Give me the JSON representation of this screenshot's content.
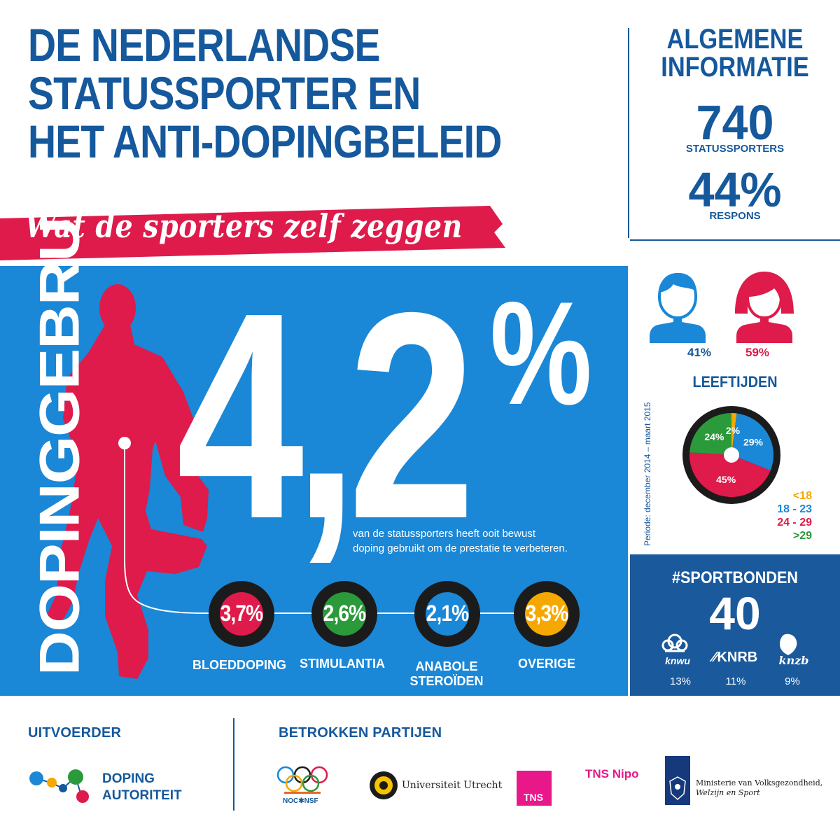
{
  "title": {
    "line1": "DE NEDERLANDSE",
    "line2": "STATUSSPORTER EN",
    "line3": "HET ANTI-DOPINGBELEID",
    "subtitle": "Wat de sporters zelf zeggen"
  },
  "info": {
    "heading_line1": "ALGEMENE",
    "heading_line2": "INFORMATIE",
    "sporters_count": "740",
    "sporters_label": "STATUSSPORTERS",
    "respons_value": "44%",
    "respons_label": "RESPONS"
  },
  "gender": {
    "male_pct": "41%",
    "female_pct": "59%"
  },
  "ages": {
    "heading": "LEEFTIJDEN",
    "period": "Periode: december 2014 – maart 2015",
    "legend": [
      {
        "label": "<18",
        "color": "#f5a800"
      },
      {
        "label": "18 - 23",
        "color": "#1a87d7"
      },
      {
        "label": "24 - 29",
        "color": "#de1b4a"
      },
      {
        "label": ">29",
        "color": "#2a9a3a"
      }
    ]
  },
  "chart_data": {
    "type": "pie",
    "categories": [
      "<18",
      "18 - 23",
      "24 - 29",
      ">29"
    ],
    "values": [
      2,
      29,
      45,
      24
    ],
    "labels": [
      "2%",
      "29%",
      "45%",
      "24%"
    ],
    "colors": [
      "#f5a800",
      "#1a87d7",
      "#de1b4a",
      "#2a9a3a"
    ]
  },
  "doping": {
    "vertical_label": "DOPINGGEBRUIK",
    "value": "4,2",
    "percent_sign": "%",
    "description_line1": "van de statussporters heeft ooit bewust",
    "description_line2": "doping gebruikt om de prestatie te verbeteren.",
    "categories": [
      {
        "value": "3,7%",
        "label1": "BLOEDDOPING",
        "label2": "",
        "color": "#de1b4a"
      },
      {
        "value": "2,6%",
        "label1": "STIMULANTIA",
        "label2": "",
        "color": "#2a9a3a"
      },
      {
        "value": "2,1%",
        "label1": "ANABOLE",
        "label2": "STEROÏDEN",
        "color": "#1a87d7"
      },
      {
        "value": "3,3%",
        "label1": "OVERIGE",
        "label2": "",
        "color": "#f5a800"
      }
    ]
  },
  "sportbonden": {
    "title": "#SPORTBONDEN",
    "count": "40",
    "bonds": [
      {
        "name": "knwu",
        "pct": "13%"
      },
      {
        "name": "KNRB",
        "pct": "11%"
      },
      {
        "name": "knzb",
        "pct": "9%"
      }
    ]
  },
  "footer": {
    "uitvoerder": "UITVOERDER",
    "betrokken": "BETROKKEN PARTIJEN",
    "doping_autoriteit_line1": "DOPING",
    "doping_autoriteit_line2": "AUTORITEIT",
    "noc_nsf": "NOC✱NSF",
    "uu": "Universiteit Utrecht",
    "tns": "TNS",
    "tns_nipo": "TNS Nipo",
    "ministerie_line1": "Ministerie van Volksgezondheid,",
    "ministerie_line2": "Welzijn en Sport"
  }
}
